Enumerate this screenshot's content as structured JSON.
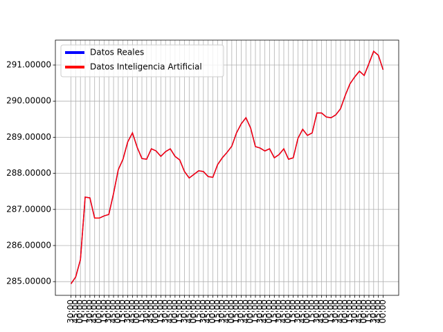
{
  "chart_data": {
    "type": "line",
    "categories": [
      "30:00",
      "45:00",
      "00:00",
      "15:00",
      "30:00",
      "45:00",
      "00:00",
      "15:00",
      "30:00",
      "45:00",
      "00:00",
      "15:00",
      "30:00",
      "45:00",
      "00:00",
      "15:00",
      "30:00",
      "45:00",
      "00:00",
      "15:00",
      "30:00",
      "45:00",
      "00:00",
      "15:00",
      "30:00",
      "45:00",
      "00:00",
      "15:00",
      "30:00",
      "45:00",
      "00:00",
      "15:00",
      "30:00",
      "45:00",
      "00:00",
      "15:00",
      "30:00",
      "45:00",
      "00:00",
      "15:00",
      "30:00",
      "45:00",
      "00:00",
      "15:00",
      "30:00",
      "45:00",
      "00:00",
      "15:00",
      "30:00",
      "45:00",
      "00:00",
      "15:00",
      "30:00",
      "45:00",
      "00:00",
      "15:00",
      "30:00",
      "45:00",
      "00:00",
      "15:00",
      "30:00",
      "45:00",
      "00:00",
      "15:00",
      "30:00",
      "45:00",
      "00:00"
    ],
    "series": [
      {
        "name": "Datos Reales",
        "color": "#0000ff",
        "values": [
          284.94,
          285.13,
          285.61,
          287.34,
          287.32,
          286.76,
          286.76,
          286.82,
          286.86,
          287.44,
          288.1,
          288.39,
          288.87,
          289.12,
          288.72,
          288.41,
          288.39,
          288.68,
          288.62,
          288.47,
          288.6,
          288.68,
          288.47,
          288.37,
          288.05,
          287.87,
          287.97,
          288.07,
          288.05,
          287.91,
          287.89,
          288.24,
          288.43,
          288.58,
          288.75,
          289.12,
          289.37,
          289.54,
          289.25,
          288.74,
          288.7,
          288.62,
          288.68,
          288.43,
          288.52,
          288.68,
          288.39,
          288.43,
          288.97,
          289.22,
          289.05,
          289.12,
          289.67,
          289.67,
          289.56,
          289.54,
          289.62,
          289.79,
          290.16,
          290.48,
          290.67,
          290.83,
          290.71,
          291.04,
          291.38,
          291.27,
          290.87
        ]
      },
      {
        "name": "Datos Inteligencia Artificial",
        "color": "#ff0000",
        "values": [
          284.94,
          285.13,
          285.61,
          287.34,
          287.32,
          286.76,
          286.76,
          286.82,
          286.86,
          287.44,
          288.1,
          288.39,
          288.87,
          289.12,
          288.72,
          288.41,
          288.39,
          288.68,
          288.62,
          288.47,
          288.6,
          288.68,
          288.47,
          288.37,
          288.05,
          287.87,
          287.97,
          288.07,
          288.05,
          287.91,
          287.89,
          288.24,
          288.43,
          288.58,
          288.75,
          289.12,
          289.37,
          289.54,
          289.25,
          288.74,
          288.7,
          288.62,
          288.68,
          288.43,
          288.52,
          288.68,
          288.39,
          288.43,
          288.97,
          289.22,
          289.05,
          289.12,
          289.67,
          289.67,
          289.56,
          289.54,
          289.62,
          289.79,
          290.16,
          290.48,
          290.67,
          290.83,
          290.71,
          291.04,
          291.38,
          291.27,
          290.87
        ]
      }
    ],
    "ylim": [
      284.62,
      291.69
    ],
    "yticks": [
      {
        "value": 285,
        "label": "285.00000"
      },
      {
        "value": 286,
        "label": "286.00000"
      },
      {
        "value": 287,
        "label": "287.00000"
      },
      {
        "value": 288,
        "label": "288.00000"
      },
      {
        "value": 289,
        "label": "289.00000"
      },
      {
        "value": 290,
        "label": "290.00000"
      },
      {
        "value": 291,
        "label": "291.00000"
      }
    ],
    "grid": true,
    "legend": "upper left"
  }
}
